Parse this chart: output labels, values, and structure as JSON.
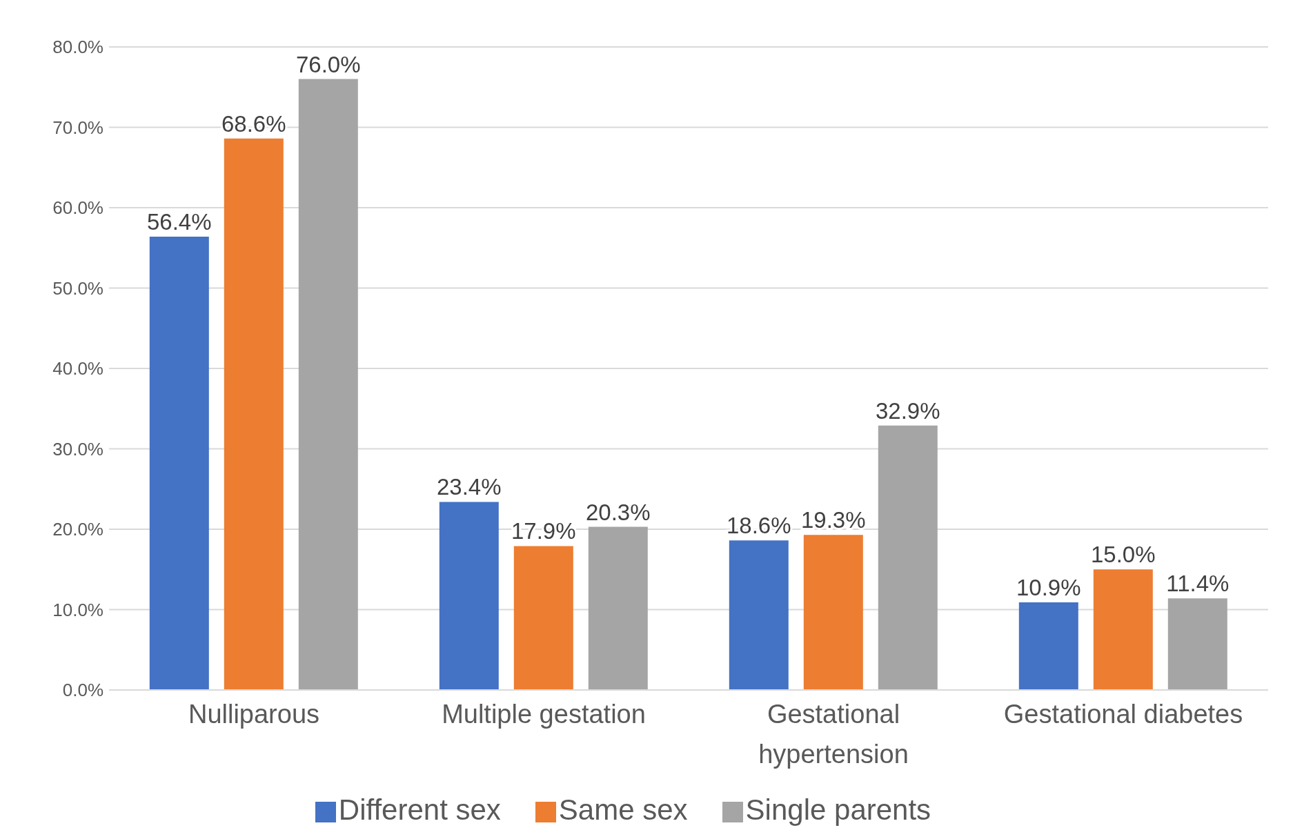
{
  "chart_data": {
    "type": "bar",
    "categories": [
      "Nulliparous",
      "Multiple gestation",
      "Gestational hypertension",
      "Gestational diabetes"
    ],
    "series": [
      {
        "name": "Different sex",
        "color": "#4472c4",
        "values": [
          56.4,
          23.4,
          18.6,
          10.9
        ],
        "value_labels": [
          "56.4%",
          "23.4%",
          "18.6%",
          "10.9%"
        ]
      },
      {
        "name": "Same sex",
        "color": "#ed7d31",
        "values": [
          68.6,
          17.9,
          19.3,
          15.0
        ],
        "value_labels": [
          "68.6%",
          "17.9%",
          "19.3%",
          "15.0%"
        ]
      },
      {
        "name": "Single parents",
        "color": "#a5a5a5",
        "values": [
          76.0,
          20.3,
          32.9,
          11.4
        ],
        "value_labels": [
          "76.0%",
          "20.3%",
          "32.9%",
          "11.4%"
        ]
      }
    ],
    "ylim": [
      0,
      80
    ],
    "yticks": [
      {
        "value": 0,
        "label": "0.0%"
      },
      {
        "value": 10,
        "label": "10.0%"
      },
      {
        "value": 20,
        "label": "20.0%"
      },
      {
        "value": 30,
        "label": "30.0%"
      },
      {
        "value": 40,
        "label": "40.0%"
      },
      {
        "value": 50,
        "label": "50.0%"
      },
      {
        "value": 60,
        "label": "60.0%"
      },
      {
        "value": 70,
        "label": "70.0%"
      },
      {
        "value": 80,
        "label": "80.0%"
      }
    ],
    "grid": "y",
    "legend": "bottom"
  }
}
